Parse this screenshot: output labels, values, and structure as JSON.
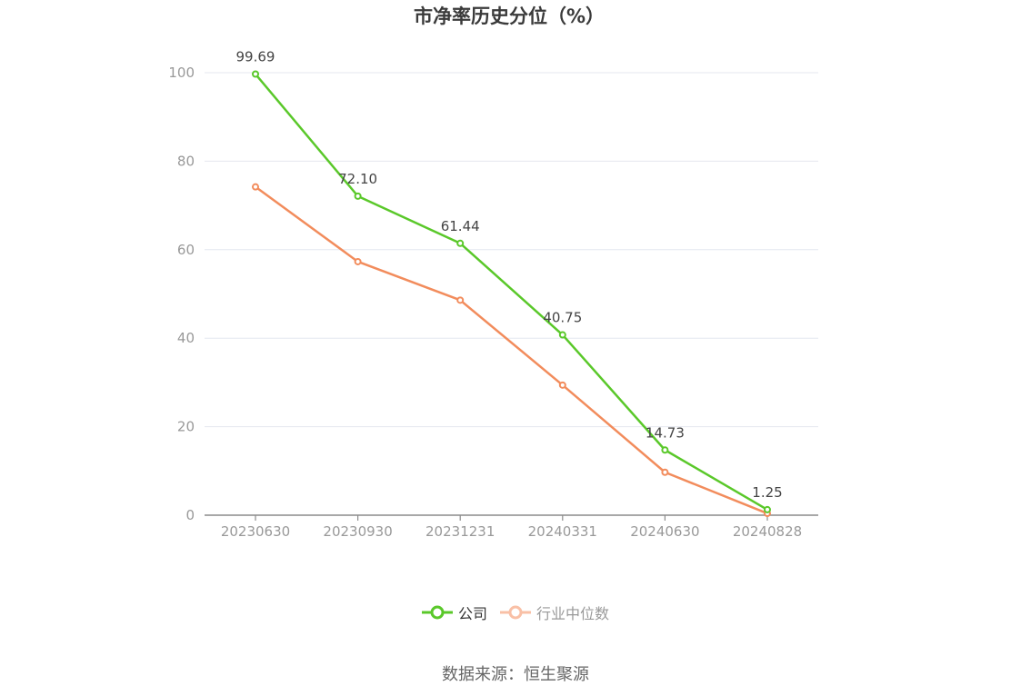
{
  "chart_data": {
    "type": "line",
    "title": "市净率历史分位（%）",
    "categories": [
      "20230630",
      "20230930",
      "20231231",
      "20240331",
      "20240630",
      "20240828"
    ],
    "series": [
      {
        "name": "公司",
        "color": "#5ac82a",
        "values": [
          99.69,
          72.1,
          61.44,
          40.75,
          14.73,
          1.25
        ],
        "labels": [
          "99.69",
          "72.10",
          "61.44",
          "40.75",
          "14.73",
          "1.25"
        ]
      },
      {
        "name": "行业中位数",
        "color": "#f28c5c",
        "values": [
          74.2,
          57.3,
          48.6,
          29.4,
          9.7,
          0.4
        ]
      }
    ],
    "ylim": [
      0,
      100
    ],
    "yticks": [
      "0",
      "20",
      "40",
      "60",
      "80",
      "100"
    ],
    "grid": true,
    "legend_position": "bottom-center"
  },
  "legend": {
    "company": "公司",
    "industry": "行业中位数"
  },
  "source": "数据来源：恒生聚源"
}
